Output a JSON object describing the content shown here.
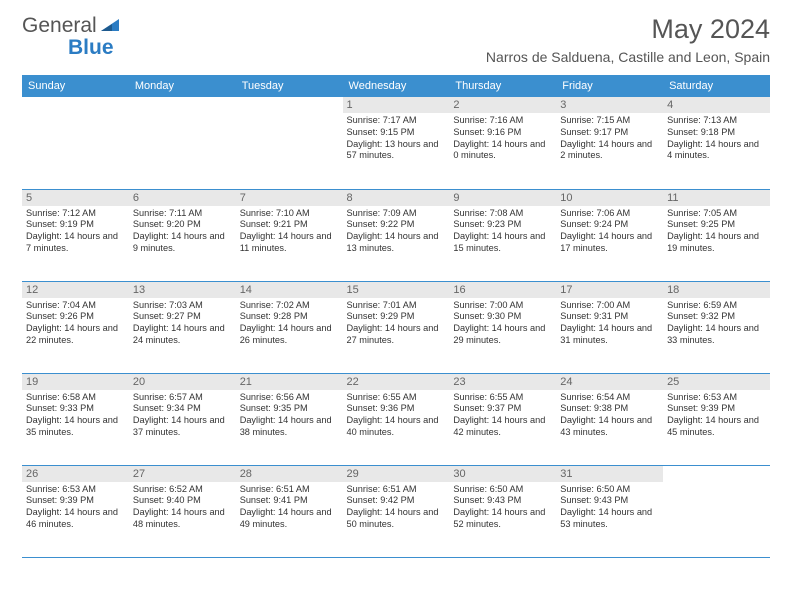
{
  "logo": {
    "text1": "General",
    "text2": "Blue"
  },
  "title": "May 2024",
  "location": "Narros de Salduena, Castille and Leon, Spain",
  "day_headers": [
    "Sunday",
    "Monday",
    "Tuesday",
    "Wednesday",
    "Thursday",
    "Friday",
    "Saturday"
  ],
  "colors": {
    "header_bg": "#3b8fcf",
    "header_text": "#ffffff",
    "daynum_bg": "#e8e8e8",
    "border": "#3b8fcf"
  },
  "weeks": [
    [
      {
        "num": "",
        "sunrise": "",
        "sunset": "",
        "daylight": ""
      },
      {
        "num": "",
        "sunrise": "",
        "sunset": "",
        "daylight": ""
      },
      {
        "num": "",
        "sunrise": "",
        "sunset": "",
        "daylight": ""
      },
      {
        "num": "1",
        "sunrise": "Sunrise: 7:17 AM",
        "sunset": "Sunset: 9:15 PM",
        "daylight": "Daylight: 13 hours and 57 minutes."
      },
      {
        "num": "2",
        "sunrise": "Sunrise: 7:16 AM",
        "sunset": "Sunset: 9:16 PM",
        "daylight": "Daylight: 14 hours and 0 minutes."
      },
      {
        "num": "3",
        "sunrise": "Sunrise: 7:15 AM",
        "sunset": "Sunset: 9:17 PM",
        "daylight": "Daylight: 14 hours and 2 minutes."
      },
      {
        "num": "4",
        "sunrise": "Sunrise: 7:13 AM",
        "sunset": "Sunset: 9:18 PM",
        "daylight": "Daylight: 14 hours and 4 minutes."
      }
    ],
    [
      {
        "num": "5",
        "sunrise": "Sunrise: 7:12 AM",
        "sunset": "Sunset: 9:19 PM",
        "daylight": "Daylight: 14 hours and 7 minutes."
      },
      {
        "num": "6",
        "sunrise": "Sunrise: 7:11 AM",
        "sunset": "Sunset: 9:20 PM",
        "daylight": "Daylight: 14 hours and 9 minutes."
      },
      {
        "num": "7",
        "sunrise": "Sunrise: 7:10 AM",
        "sunset": "Sunset: 9:21 PM",
        "daylight": "Daylight: 14 hours and 11 minutes."
      },
      {
        "num": "8",
        "sunrise": "Sunrise: 7:09 AM",
        "sunset": "Sunset: 9:22 PM",
        "daylight": "Daylight: 14 hours and 13 minutes."
      },
      {
        "num": "9",
        "sunrise": "Sunrise: 7:08 AM",
        "sunset": "Sunset: 9:23 PM",
        "daylight": "Daylight: 14 hours and 15 minutes."
      },
      {
        "num": "10",
        "sunrise": "Sunrise: 7:06 AM",
        "sunset": "Sunset: 9:24 PM",
        "daylight": "Daylight: 14 hours and 17 minutes."
      },
      {
        "num": "11",
        "sunrise": "Sunrise: 7:05 AM",
        "sunset": "Sunset: 9:25 PM",
        "daylight": "Daylight: 14 hours and 19 minutes."
      }
    ],
    [
      {
        "num": "12",
        "sunrise": "Sunrise: 7:04 AM",
        "sunset": "Sunset: 9:26 PM",
        "daylight": "Daylight: 14 hours and 22 minutes."
      },
      {
        "num": "13",
        "sunrise": "Sunrise: 7:03 AM",
        "sunset": "Sunset: 9:27 PM",
        "daylight": "Daylight: 14 hours and 24 minutes."
      },
      {
        "num": "14",
        "sunrise": "Sunrise: 7:02 AM",
        "sunset": "Sunset: 9:28 PM",
        "daylight": "Daylight: 14 hours and 26 minutes."
      },
      {
        "num": "15",
        "sunrise": "Sunrise: 7:01 AM",
        "sunset": "Sunset: 9:29 PM",
        "daylight": "Daylight: 14 hours and 27 minutes."
      },
      {
        "num": "16",
        "sunrise": "Sunrise: 7:00 AM",
        "sunset": "Sunset: 9:30 PM",
        "daylight": "Daylight: 14 hours and 29 minutes."
      },
      {
        "num": "17",
        "sunrise": "Sunrise: 7:00 AM",
        "sunset": "Sunset: 9:31 PM",
        "daylight": "Daylight: 14 hours and 31 minutes."
      },
      {
        "num": "18",
        "sunrise": "Sunrise: 6:59 AM",
        "sunset": "Sunset: 9:32 PM",
        "daylight": "Daylight: 14 hours and 33 minutes."
      }
    ],
    [
      {
        "num": "19",
        "sunrise": "Sunrise: 6:58 AM",
        "sunset": "Sunset: 9:33 PM",
        "daylight": "Daylight: 14 hours and 35 minutes."
      },
      {
        "num": "20",
        "sunrise": "Sunrise: 6:57 AM",
        "sunset": "Sunset: 9:34 PM",
        "daylight": "Daylight: 14 hours and 37 minutes."
      },
      {
        "num": "21",
        "sunrise": "Sunrise: 6:56 AM",
        "sunset": "Sunset: 9:35 PM",
        "daylight": "Daylight: 14 hours and 38 minutes."
      },
      {
        "num": "22",
        "sunrise": "Sunrise: 6:55 AM",
        "sunset": "Sunset: 9:36 PM",
        "daylight": "Daylight: 14 hours and 40 minutes."
      },
      {
        "num": "23",
        "sunrise": "Sunrise: 6:55 AM",
        "sunset": "Sunset: 9:37 PM",
        "daylight": "Daylight: 14 hours and 42 minutes."
      },
      {
        "num": "24",
        "sunrise": "Sunrise: 6:54 AM",
        "sunset": "Sunset: 9:38 PM",
        "daylight": "Daylight: 14 hours and 43 minutes."
      },
      {
        "num": "25",
        "sunrise": "Sunrise: 6:53 AM",
        "sunset": "Sunset: 9:39 PM",
        "daylight": "Daylight: 14 hours and 45 minutes."
      }
    ],
    [
      {
        "num": "26",
        "sunrise": "Sunrise: 6:53 AM",
        "sunset": "Sunset: 9:39 PM",
        "daylight": "Daylight: 14 hours and 46 minutes."
      },
      {
        "num": "27",
        "sunrise": "Sunrise: 6:52 AM",
        "sunset": "Sunset: 9:40 PM",
        "daylight": "Daylight: 14 hours and 48 minutes."
      },
      {
        "num": "28",
        "sunrise": "Sunrise: 6:51 AM",
        "sunset": "Sunset: 9:41 PM",
        "daylight": "Daylight: 14 hours and 49 minutes."
      },
      {
        "num": "29",
        "sunrise": "Sunrise: 6:51 AM",
        "sunset": "Sunset: 9:42 PM",
        "daylight": "Daylight: 14 hours and 50 minutes."
      },
      {
        "num": "30",
        "sunrise": "Sunrise: 6:50 AM",
        "sunset": "Sunset: 9:43 PM",
        "daylight": "Daylight: 14 hours and 52 minutes."
      },
      {
        "num": "31",
        "sunrise": "Sunrise: 6:50 AM",
        "sunset": "Sunset: 9:43 PM",
        "daylight": "Daylight: 14 hours and 53 minutes."
      },
      {
        "num": "",
        "sunrise": "",
        "sunset": "",
        "daylight": ""
      }
    ]
  ]
}
